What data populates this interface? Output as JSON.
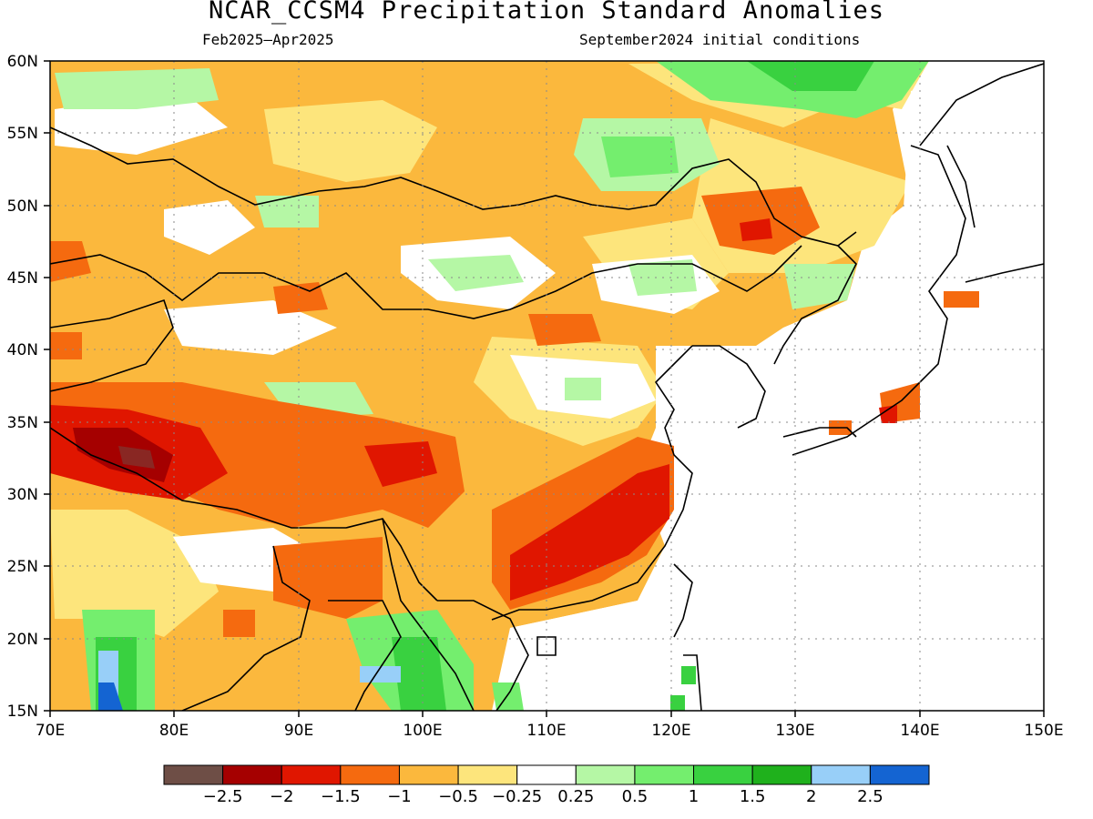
{
  "header": {
    "title": "NCAR_CCSM4 Precipitation Standard Anomalies",
    "period": "Feb2025–Apr2025",
    "init": "September2024 initial conditions"
  },
  "map": {
    "lon_ticks": [
      "70E",
      "80E",
      "90E",
      "100E",
      "110E",
      "120E",
      "130E",
      "140E",
      "150E"
    ],
    "lat_ticks": [
      "15N",
      "20N",
      "25N",
      "30N",
      "35N",
      "40N",
      "45N",
      "50N",
      "55N",
      "60N"
    ]
  },
  "colorbar": {
    "colors": [
      "#6e4e46",
      "#a50000",
      "#e01600",
      "#f56a0f",
      "#fbb83d",
      "#fde57c",
      "#ffffff",
      "#b5f7a5",
      "#74ee6e",
      "#39d140",
      "#1fb11c",
      "#98cff8",
      "#1464d2"
    ],
    "labels": [
      "−2.5",
      "−2",
      "−1.5",
      "−1",
      "−0.5",
      "−0.25",
      "0.25",
      "0.5",
      "1",
      "1.5",
      "2",
      "2.5"
    ]
  }
}
